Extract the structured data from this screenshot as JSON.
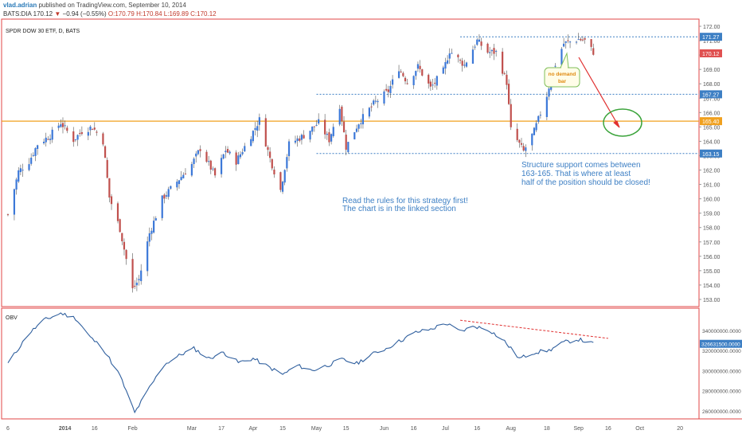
{
  "header": {
    "author": "vlad.adrian",
    "published": "published on TradingView.com, September 10, 2014",
    "symbol": "BATS:DIA",
    "last": "170.12",
    "change_arrow": "▼",
    "change": "−0.94 (−0.55%)",
    "open": "O:170.79",
    "high": "H:170.84",
    "low": "L:169.89",
    "close": "C:170.12"
  },
  "chart_data": [
    {
      "type": "candlestick",
      "title": "SPDR DOW 30 ETF, D, BATS",
      "ylim": [
        152.5,
        172.5
      ],
      "y_ticks": [
        "172.00",
        "171.00",
        "170.00",
        "169.00",
        "168.00",
        "167.00",
        "166.00",
        "165.00",
        "164.00",
        "163.00",
        "162.00",
        "161.00",
        "160.00",
        "159.00",
        "158.00",
        "157.00",
        "156.00",
        "155.00",
        "154.00",
        "153.00"
      ],
      "price_badges": [
        {
          "value": "171.27",
          "color": "#3d7fc4"
        },
        {
          "value": "170.12",
          "color": "#e05050"
        },
        {
          "value": "167.27",
          "color": "#3d7fc4"
        },
        {
          "value": "165.40",
          "color": "#f0a01e"
        },
        {
          "value": "163.15",
          "color": "#3d7fc4"
        }
      ],
      "levels": [
        {
          "value": 171.27,
          "style": "dotted",
          "color": "#3d7fc4",
          "from": "Jul",
          "to": "end"
        },
        {
          "value": 167.27,
          "style": "dotted",
          "color": "#3d7fc4",
          "from": "May",
          "to": "end"
        },
        {
          "value": 165.4,
          "style": "solid",
          "color": "#f0a01e",
          "from": "start",
          "to": "end"
        },
        {
          "value": 163.15,
          "style": "dotted",
          "color": "#3d7fc4",
          "from": "May",
          "to": "end"
        }
      ],
      "x_ticks": [
        "6",
        "2014",
        "16",
        "Feb",
        "Mar",
        "17",
        "Apr",
        "15",
        "May",
        "15",
        "Jun",
        "16",
        "Jul",
        "16",
        "Aug",
        "18",
        "Sep",
        "16",
        "Oct",
        "20"
      ],
      "close_path": [
        [
          "2013-12-06",
          158.9
        ],
        [
          "2013-12-11",
          161.9
        ],
        [
          "2013-12-16",
          162.6
        ],
        [
          "2013-12-20",
          163.8
        ],
        [
          "2013-12-26",
          164.4
        ],
        [
          "2013-12-31",
          165.3
        ],
        [
          "2014-01-06",
          164.1
        ],
        [
          "2014-01-10",
          164.7
        ],
        [
          "2014-01-15",
          165.0
        ],
        [
          "2014-01-20",
          164.0
        ],
        [
          "2014-01-23",
          160.1
        ],
        [
          "2014-01-28",
          157.9
        ],
        [
          "2014-02-03",
          153.7
        ],
        [
          "2014-02-06",
          154.4
        ],
        [
          "2014-02-11",
          157.6
        ],
        [
          "2014-02-17",
          160.0
        ],
        [
          "2014-02-24",
          161.2
        ],
        [
          "2014-03-03",
          162.4
        ],
        [
          "2014-03-07",
          163.5
        ],
        [
          "2014-03-14",
          161.6
        ],
        [
          "2014-03-19",
          163.4
        ],
        [
          "2014-03-24",
          162.6
        ],
        [
          "2014-03-31",
          164.4
        ],
        [
          "2014-04-04",
          165.5
        ],
        [
          "2014-04-09",
          162.8
        ],
        [
          "2014-04-14",
          160.6
        ],
        [
          "2014-04-18",
          163.8
        ],
        [
          "2014-04-25",
          164.4
        ],
        [
          "2014-05-02",
          165.3
        ],
        [
          "2014-05-07",
          164.1
        ],
        [
          "2014-05-12",
          166.5
        ],
        [
          "2014-05-15",
          163.6
        ],
        [
          "2014-05-21",
          165.3
        ],
        [
          "2014-05-28",
          166.6
        ],
        [
          "2014-06-04",
          167.5
        ],
        [
          "2014-06-09",
          169.1
        ],
        [
          "2014-06-13",
          168.1
        ],
        [
          "2014-06-18",
          169.2
        ],
        [
          "2014-06-24",
          167.7
        ],
        [
          "2014-06-30",
          168.9
        ],
        [
          "2014-07-03",
          170.3
        ],
        [
          "2014-07-10",
          169.3
        ],
        [
          "2014-07-16",
          171.0
        ],
        [
          "2014-07-21",
          170.2
        ],
        [
          "2014-07-25",
          170.2
        ],
        [
          "2014-07-30",
          168.1
        ],
        [
          "2014-08-01",
          164.8
        ],
        [
          "2014-08-07",
          163.3
        ],
        [
          "2014-08-12",
          164.7
        ],
        [
          "2014-08-18",
          167.2
        ],
        [
          "2014-08-21",
          169.0
        ],
        [
          "2014-08-26",
          170.8
        ],
        [
          "2014-09-02",
          171.1
        ],
        [
          "2014-09-05",
          171.0
        ],
        [
          "2014-09-09",
          170.2
        ]
      ]
    },
    {
      "type": "line",
      "title": "OBV",
      "ylim": [
        252000000,
        362000000
      ],
      "y_ticks": [
        "360000000.0000",
        "340000000.0000",
        "320000000.0000",
        "300000000.0000",
        "280000000.0000",
        "260000000.0000"
      ],
      "last_badge": "326631500.0000",
      "points": [
        [
          "2013-12-06",
          307000000
        ],
        [
          "2013-12-11",
          322000000
        ],
        [
          "2013-12-16",
          337000000
        ],
        [
          "2013-12-23",
          350000000
        ],
        [
          "2013-12-31",
          357000000
        ],
        [
          "2014-01-07",
          352000000
        ],
        [
          "2014-01-14",
          333000000
        ],
        [
          "2014-01-20",
          322000000
        ],
        [
          "2014-01-28",
          295000000
        ],
        [
          "2014-02-04",
          258000000
        ],
        [
          "2014-02-11",
          283000000
        ],
        [
          "2014-02-18",
          306000000
        ],
        [
          "2014-02-25",
          315000000
        ],
        [
          "2014-03-04",
          322000000
        ],
        [
          "2014-03-11",
          312000000
        ],
        [
          "2014-03-18",
          318000000
        ],
        [
          "2014-03-25",
          308000000
        ],
        [
          "2014-04-01",
          312000000
        ],
        [
          "2014-04-08",
          304000000
        ],
        [
          "2014-04-15",
          296000000
        ],
        [
          "2014-04-22",
          305000000
        ],
        [
          "2014-04-29",
          300000000
        ],
        [
          "2014-05-06",
          305000000
        ],
        [
          "2014-05-13",
          311000000
        ],
        [
          "2014-05-20",
          307000000
        ],
        [
          "2014-05-27",
          316000000
        ],
        [
          "2014-06-03",
          322000000
        ],
        [
          "2014-06-10",
          330000000
        ],
        [
          "2014-06-17",
          338000000
        ],
        [
          "2014-06-24",
          341000000
        ],
        [
          "2014-07-01",
          347000000
        ],
        [
          "2014-07-08",
          339000000
        ],
        [
          "2014-07-15",
          344000000
        ],
        [
          "2014-07-22",
          340000000
        ],
        [
          "2014-07-29",
          329000000
        ],
        [
          "2014-08-05",
          312000000
        ],
        [
          "2014-08-12",
          318000000
        ],
        [
          "2014-08-19",
          320000000
        ],
        [
          "2014-08-26",
          328000000
        ],
        [
          "2014-09-02",
          331000000
        ],
        [
          "2014-09-09",
          326600000
        ]
      ],
      "divergence_line": [
        [
          "2014-07-08",
          350000000
        ],
        [
          "2014-09-16",
          332000000
        ]
      ]
    }
  ],
  "annotations": {
    "no_demand": [
      "no demand",
      "bar"
    ],
    "structure": [
      "Structure support comes between",
      "163-165. That is where at least",
      "half of the position should be closed!"
    ],
    "rules": [
      "Read the rules for this strategy first!",
      "The chart is in the linked section"
    ]
  }
}
